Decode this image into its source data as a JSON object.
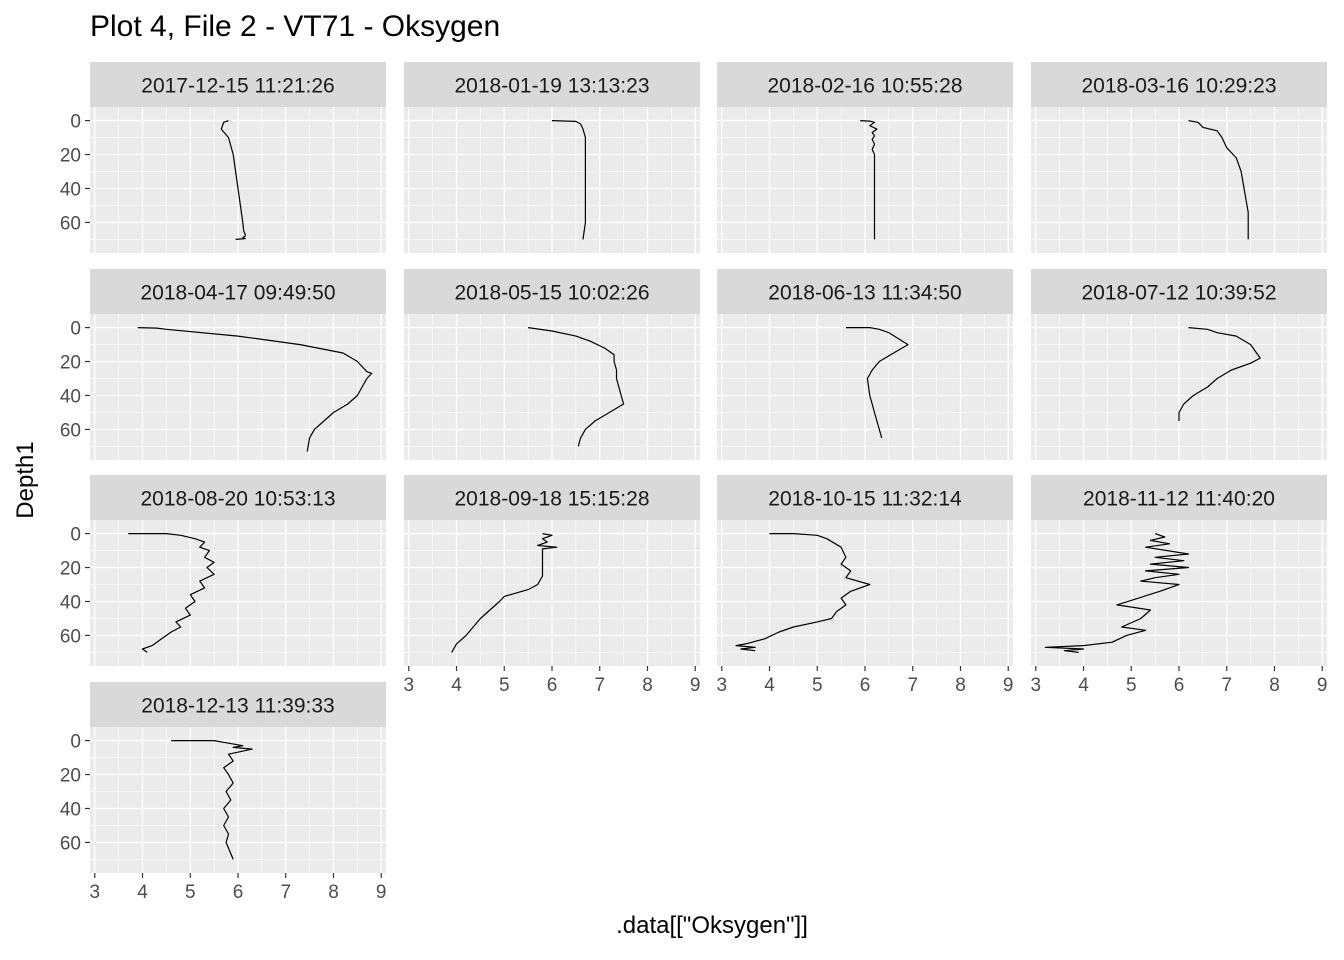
{
  "title": "Plot 4, File 2 - VT71  -  Oksygen",
  "chart_data": {
    "type": "line",
    "title": "Plot 4, File 2 - VT71  -  Oksygen",
    "xlabel": ".data[[\"Oksygen\"]]",
    "ylabel": "Depth1",
    "xlim": [
      2.9,
      9.1
    ],
    "ylim": [
      78,
      -8
    ],
    "y_reversed": true,
    "x_ticks": [
      3,
      4,
      5,
      6,
      7,
      8,
      9
    ],
    "y_ticks": [
      0,
      20,
      40,
      60
    ],
    "grid": true,
    "line_color": "#000000",
    "panel_background": "#EBEBEB",
    "strip_background": "#D9D9D9",
    "panels": [
      {
        "label": "2017-12-15 11:21:26",
        "x": [
          5.8,
          5.7,
          5.65,
          5.8,
          5.9,
          5.95,
          6.0,
          6.05,
          6.1,
          6.12,
          6.15,
          6.15,
          6.1,
          6.15,
          5.95
        ],
        "y": [
          0,
          1,
          5,
          10,
          20,
          30,
          40,
          50,
          60,
          65,
          67,
          68,
          69,
          69.5,
          70
        ]
      },
      {
        "label": "2018-01-19 13:13:23",
        "x": [
          6.0,
          6.5,
          6.6,
          6.65,
          6.7,
          6.7,
          6.7,
          6.7,
          6.7,
          6.7,
          6.65
        ],
        "y": [
          0,
          0.5,
          2,
          5,
          10,
          20,
          30,
          40,
          50,
          60,
          70
        ]
      },
      {
        "label": "2018-02-16 10:55:28",
        "x": [
          5.9,
          6.1,
          6.2,
          6.1,
          6.25,
          6.15,
          6.2,
          6.15,
          6.2,
          6.15,
          6.2,
          6.2,
          6.2,
          6.2,
          6.2,
          6.2
        ],
        "y": [
          0,
          0.3,
          1,
          3,
          5,
          7,
          9,
          11,
          14,
          17,
          20,
          30,
          40,
          50,
          60,
          70
        ]
      },
      {
        "label": "2018-03-16 10:29:23",
        "x": [
          6.2,
          6.4,
          6.5,
          6.8,
          6.9,
          7.0,
          7.2,
          7.3,
          7.35,
          7.4,
          7.45,
          7.45,
          7.45
        ],
        "y": [
          0,
          1,
          4,
          6,
          10,
          16,
          22,
          30,
          38,
          46,
          54,
          62,
          70
        ]
      },
      {
        "label": "2018-04-17 09:49:50",
        "x": [
          3.9,
          4.3,
          4.5,
          6.0,
          7.3,
          8.2,
          8.5,
          8.6,
          8.7,
          8.8,
          8.7,
          8.6,
          8.5,
          8.3,
          8.0,
          7.8,
          7.6,
          7.5,
          7.45
        ],
        "y": [
          0,
          0.3,
          1,
          5,
          10,
          15,
          20,
          23,
          26,
          27,
          30,
          35,
          40,
          45,
          50,
          55,
          60,
          65,
          73
        ]
      },
      {
        "label": "2018-05-15 10:02:26",
        "x": [
          5.5,
          6.0,
          6.5,
          6.8,
          7.1,
          7.3,
          7.3,
          7.35,
          7.35,
          7.4,
          7.5,
          7.2,
          6.9,
          6.7,
          6.6,
          6.55
        ],
        "y": [
          0,
          2,
          5,
          8,
          12,
          16,
          20,
          25,
          30,
          35,
          45,
          50,
          55,
          60,
          65,
          70
        ]
      },
      {
        "label": "2018-06-13 11:34:50",
        "x": [
          5.6,
          6.1,
          6.3,
          6.5,
          6.9,
          6.6,
          6.3,
          6.15,
          6.05,
          6.1,
          6.2,
          6.25,
          6.3,
          6.35
        ],
        "y": [
          0,
          0,
          1,
          3,
          10,
          15,
          20,
          25,
          30,
          40,
          50,
          55,
          60,
          65
        ]
      },
      {
        "label": "2018-07-12 10:39:52",
        "x": [
          6.2,
          6.6,
          6.8,
          7.2,
          7.5,
          7.7,
          7.5,
          7.1,
          6.8,
          6.6,
          6.3,
          6.1,
          6.0,
          6.0
        ],
        "y": [
          0,
          1,
          3,
          5,
          10,
          18,
          21,
          25,
          30,
          35,
          40,
          45,
          50,
          55
        ]
      },
      {
        "label": "2018-08-20 10:53:13",
        "x": [
          3.7,
          4.5,
          4.8,
          5.1,
          5.3,
          5.2,
          5.4,
          5.3,
          5.5,
          5.35,
          5.5,
          5.2,
          5.3,
          5.0,
          5.1,
          4.9,
          5.0,
          4.7,
          4.8,
          4.6,
          4.5,
          4.4,
          4.3,
          4.2,
          4.0,
          4.1
        ],
        "y": [
          0,
          0,
          1,
          3,
          5,
          8,
          10,
          14,
          17,
          20,
          24,
          28,
          32,
          36,
          40,
          44,
          48,
          52,
          55,
          58,
          60,
          62,
          64,
          66,
          68,
          70
        ]
      },
      {
        "label": "2018-09-18 15:15:28",
        "x": [
          5.8,
          6.0,
          5.8,
          5.9,
          5.7,
          6.1,
          5.8,
          5.8,
          5.8,
          5.7,
          5.5,
          5.0,
          4.9,
          4.7,
          4.5,
          4.2,
          4.0,
          3.9
        ],
        "y": [
          0,
          1,
          3,
          5,
          7,
          8,
          9,
          15,
          25,
          30,
          33,
          37,
          40,
          45,
          50,
          60,
          65,
          70
        ]
      },
      {
        "label": "2018-10-15 11:32:14",
        "x": [
          4.0,
          4.5,
          5.0,
          5.2,
          5.5,
          5.6,
          5.5,
          5.7,
          5.6,
          6.1,
          5.7,
          5.5,
          5.6,
          5.4,
          5.3,
          5.0,
          4.5,
          4.2,
          3.9,
          3.5,
          3.3,
          3.7,
          3.4,
          3.7
        ],
        "y": [
          0,
          0,
          1,
          3,
          8,
          14,
          18,
          22,
          26,
          30,
          34,
          38,
          42,
          46,
          50,
          52,
          55,
          58,
          62,
          65,
          66,
          67,
          68,
          69
        ]
      },
      {
        "label": "2018-11-12 11:40:20",
        "x": [
          5.5,
          5.7,
          5.4,
          5.8,
          5.3,
          6.2,
          5.5,
          6.1,
          5.4,
          6.2,
          5.3,
          6.0,
          5.5,
          5.2,
          6.0,
          5.6,
          4.7,
          5.4,
          5.2,
          4.8,
          5.3,
          4.9,
          4.6,
          4.0,
          3.2,
          4.0,
          3.6,
          3.9
        ],
        "y": [
          0,
          2,
          4,
          6,
          8,
          12,
          14,
          16,
          18,
          20,
          22,
          24,
          26,
          28,
          30,
          34,
          42,
          45,
          50,
          55,
          57,
          60,
          64,
          66,
          67,
          68,
          69,
          70
        ]
      },
      {
        "label": "2018-12-13 11:39:33",
        "x": [
          4.6,
          5.5,
          5.7,
          6.1,
          5.9,
          6.3,
          5.8,
          5.9,
          5.7,
          5.8,
          5.9,
          5.75,
          5.85,
          5.7,
          5.8,
          5.7,
          5.8,
          5.75,
          5.9
        ],
        "y": [
          0,
          0,
          1,
          3,
          4,
          5,
          8,
          12,
          16,
          20,
          25,
          30,
          35,
          40,
          45,
          50,
          55,
          60,
          70
        ]
      }
    ]
  }
}
